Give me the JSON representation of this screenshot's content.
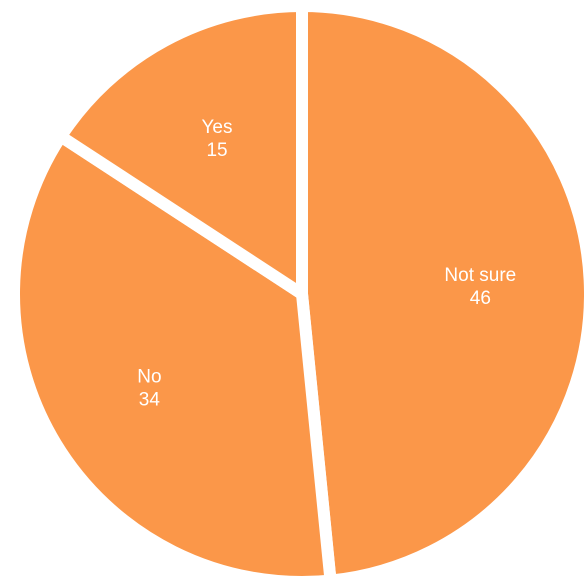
{
  "chart_data": {
    "type": "pie",
    "title": "",
    "slices": [
      {
        "label": "Not sure",
        "value": 46
      },
      {
        "label": "No",
        "value": 34
      },
      {
        "label": "Yes",
        "value": 15
      }
    ],
    "colors": {
      "slice": "#fb9749",
      "separator": "#ffffff"
    },
    "start_angle_deg": 0,
    "direction": "clockwise"
  }
}
